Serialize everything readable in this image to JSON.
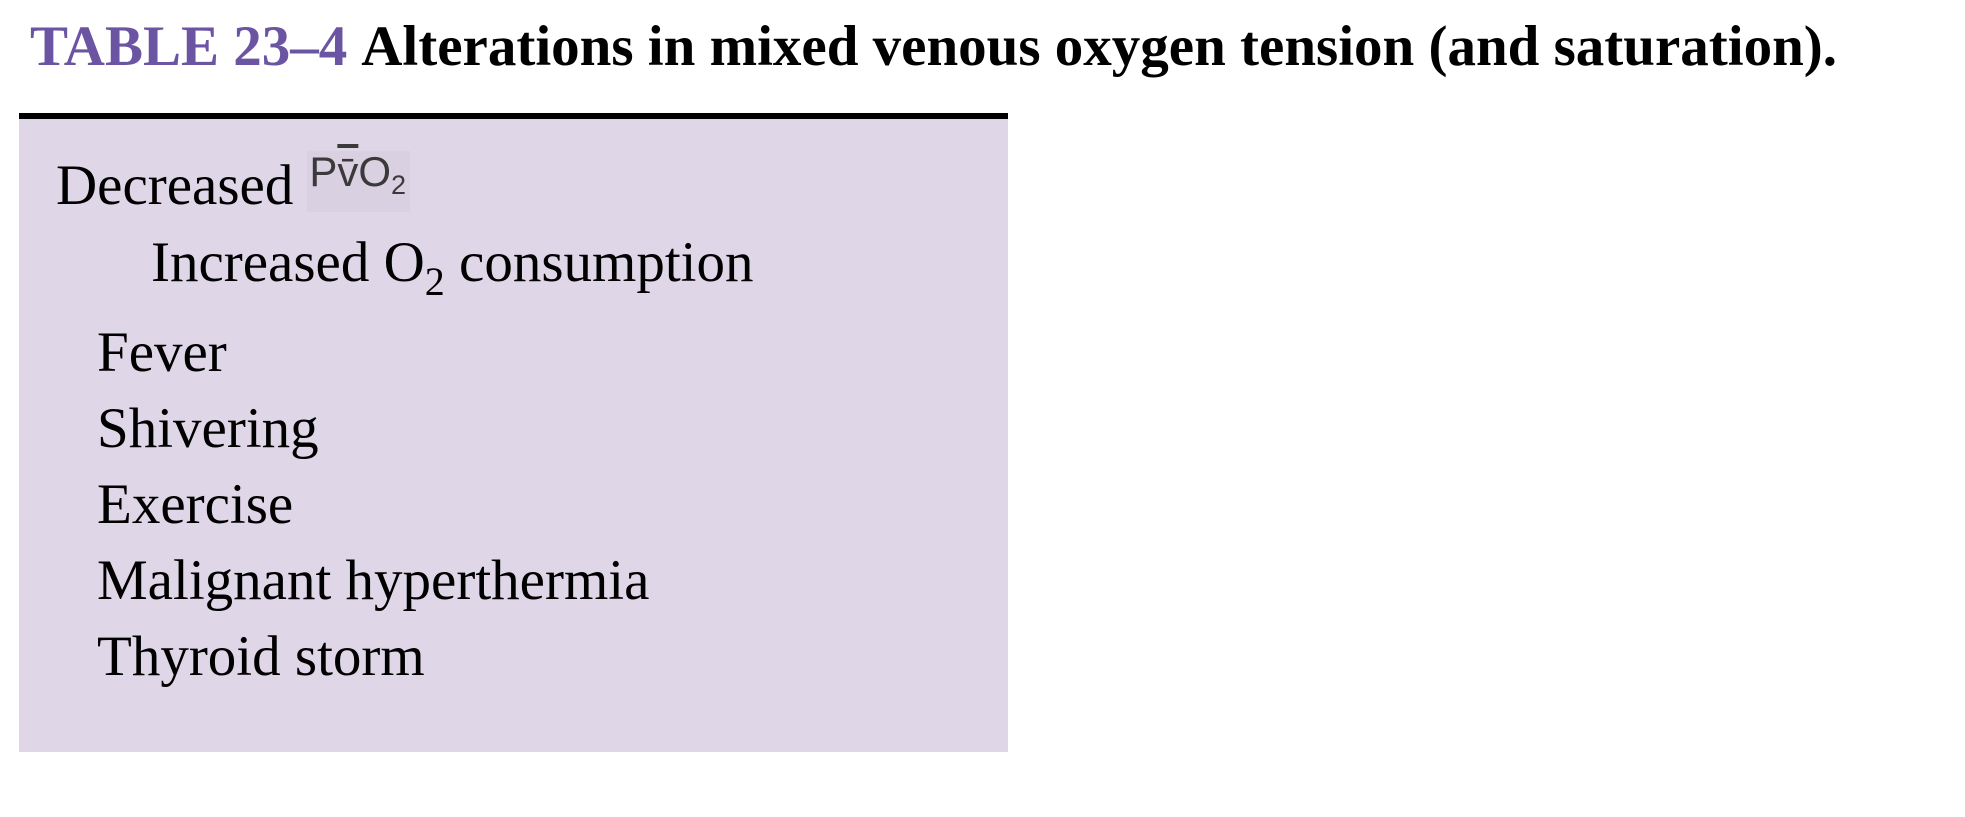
{
  "table": {
    "label": "TABLE 23–4",
    "caption": "Alterations in mixed venous oxygen tension (and saturation)."
  },
  "content": {
    "heading_text": "Decreased",
    "heading_symbol": {
      "p": "P",
      "v": "v̄",
      "o": "O",
      "subscript": "2"
    },
    "subheading": {
      "before": "Increased O",
      "subscript": "2",
      "after": " consumption"
    },
    "items": [
      "Fever",
      "Shivering",
      "Exercise",
      "Malignant hyperthermia",
      "Thyroid storm"
    ]
  },
  "colors": {
    "label": "#6b55a3",
    "box_background": "#dfd6e8",
    "rule": "#000000"
  }
}
